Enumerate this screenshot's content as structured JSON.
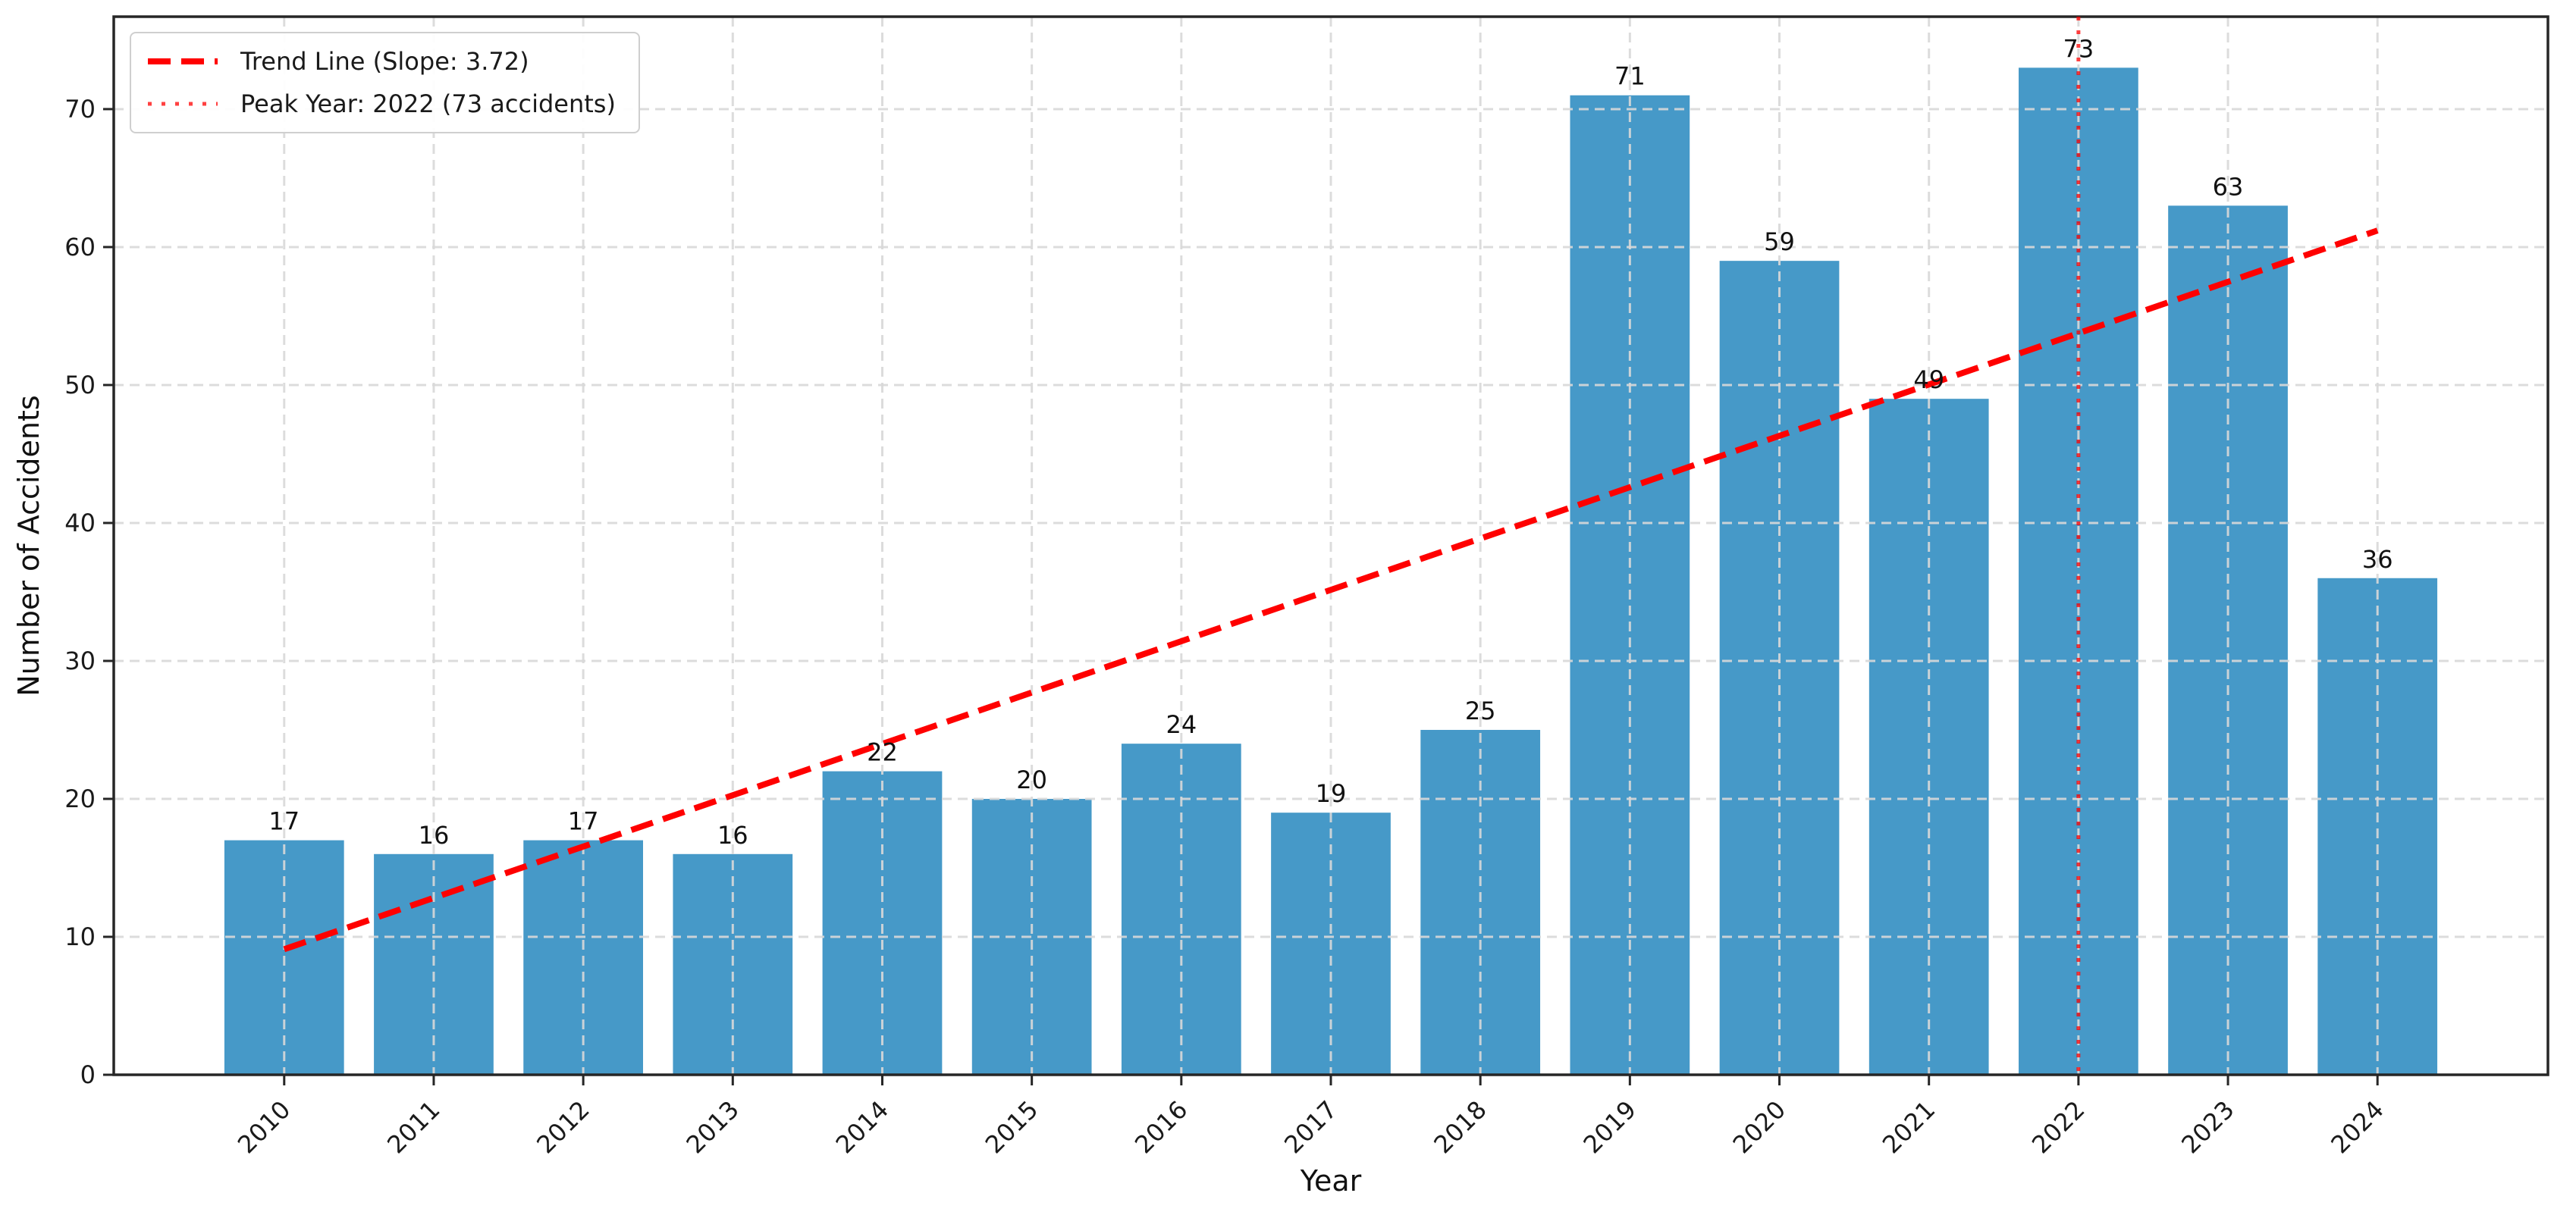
{
  "chart_data": {
    "type": "bar",
    "title": "",
    "xlabel": "Year",
    "ylabel": "Number of Accidents",
    "categories": [
      "2010",
      "2011",
      "2012",
      "2013",
      "2014",
      "2015",
      "2016",
      "2017",
      "2018",
      "2019",
      "2020",
      "2021",
      "2022",
      "2023",
      "2024"
    ],
    "values": [
      17,
      16,
      17,
      16,
      22,
      20,
      24,
      19,
      25,
      71,
      59,
      49,
      73,
      63,
      36
    ],
    "yticks": [
      0,
      10,
      20,
      30,
      40,
      50,
      60,
      70
    ],
    "ylim": [
      0,
      76.7
    ],
    "grid": "dashed, drawn over bars",
    "bar_color": "#4699c8",
    "bar_value_labels": true,
    "legend_position": "upper-left",
    "trend_line": {
      "label": "Trend Line (Slope: 3.72)",
      "slope": 3.72,
      "style": "dashed",
      "color": "#ff0000",
      "start_value": 9.1,
      "end_value": 61.2
    },
    "peak_line": {
      "label": "Peak Year: 2022 (73 accidents)",
      "year": "2022",
      "value": 73,
      "style": "dotted",
      "color": "#ff0000"
    }
  }
}
